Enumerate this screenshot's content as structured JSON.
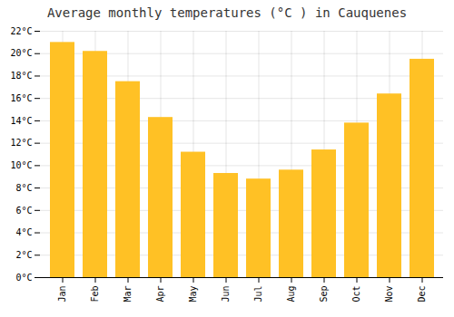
{
  "chart_data": {
    "type": "bar",
    "title": "Average monthly temperatures (°C ) in Cauquenes",
    "categories": [
      "Jan",
      "Feb",
      "Mar",
      "Apr",
      "May",
      "Jun",
      "Jul",
      "Aug",
      "Sep",
      "Oct",
      "Nov",
      "Dec"
    ],
    "values": [
      21.0,
      20.2,
      17.5,
      14.3,
      11.2,
      9.3,
      8.8,
      9.6,
      11.4,
      13.8,
      16.4,
      19.5
    ],
    "color": "#FFC125",
    "ylim": [
      0,
      22
    ],
    "yticks": [
      {
        "value": 0,
        "label": "0°C"
      },
      {
        "value": 2,
        "label": "2°C"
      },
      {
        "value": 4,
        "label": "4°C"
      },
      {
        "value": 6,
        "label": "6°C"
      },
      {
        "value": 8,
        "label": "8°C"
      },
      {
        "value": 10,
        "label": "10°C"
      },
      {
        "value": 12,
        "label": "12°C"
      },
      {
        "value": 14,
        "label": "14°C"
      },
      {
        "value": 16,
        "label": "16°C"
      },
      {
        "value": 18,
        "label": "18°C"
      },
      {
        "value": 20,
        "label": "20°C"
      },
      {
        "value": 22,
        "label": "22°C"
      }
    ],
    "grid": true
  }
}
